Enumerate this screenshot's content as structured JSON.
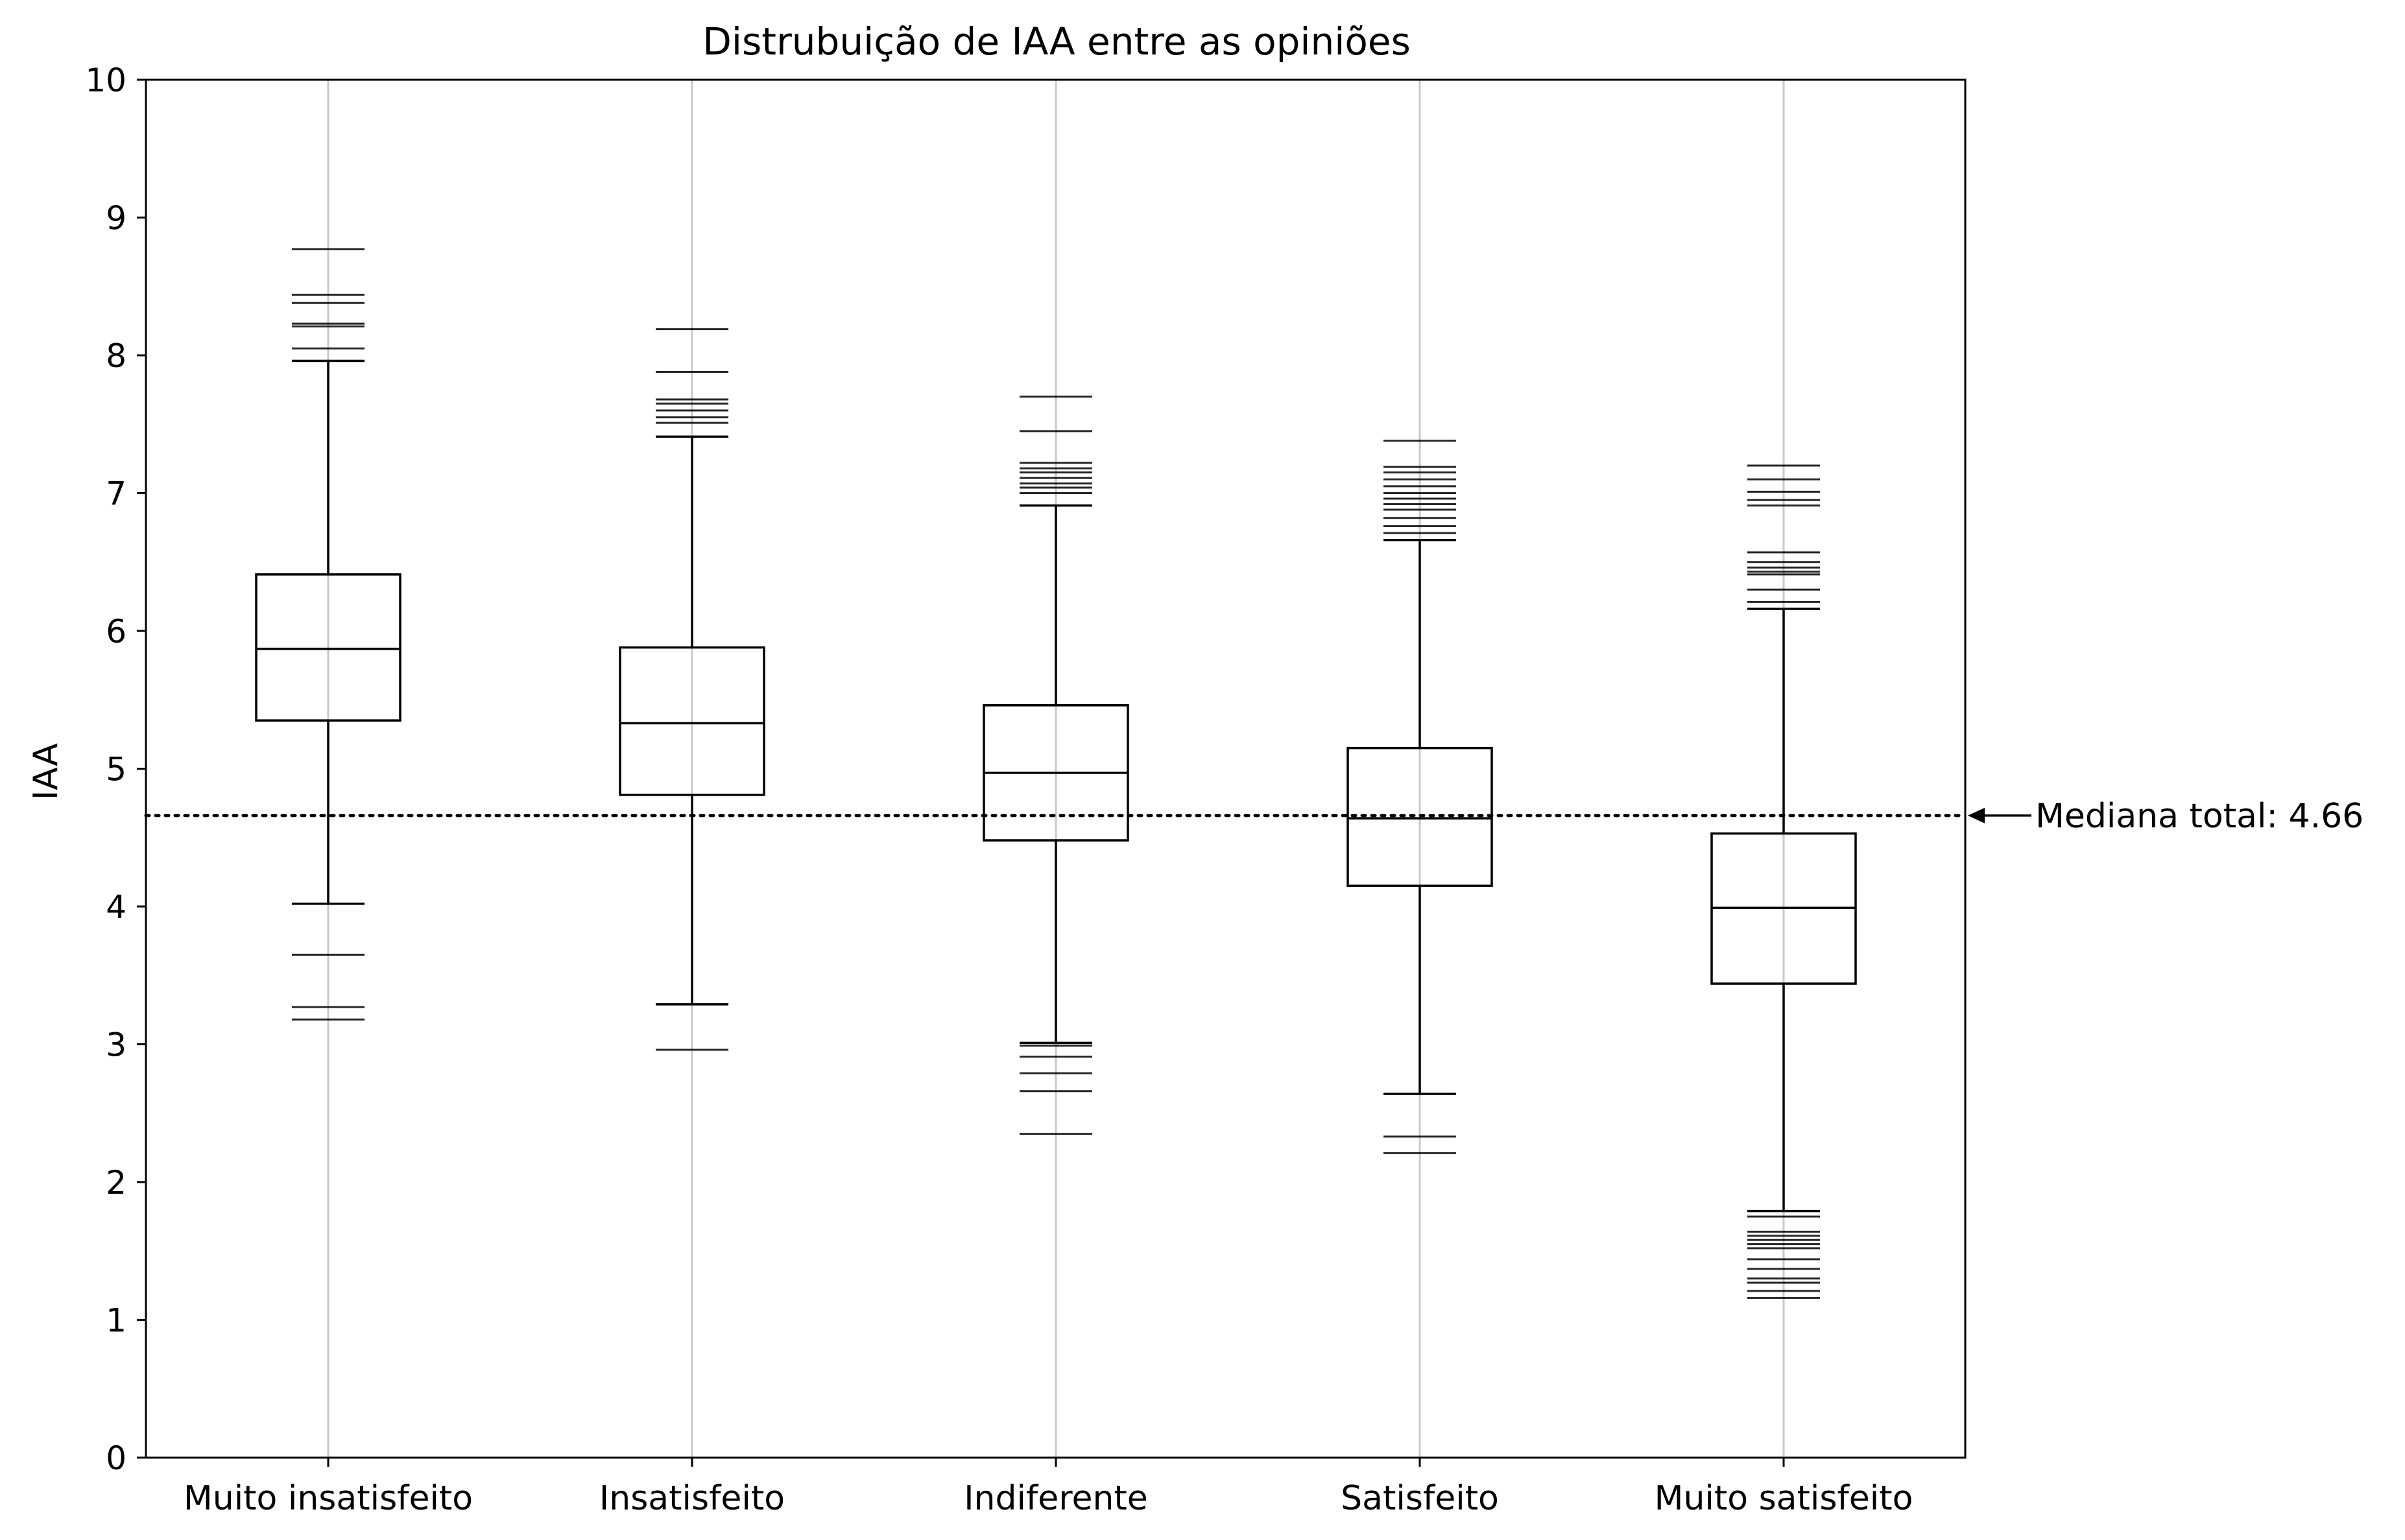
{
  "chart_data": {
    "type": "boxplot",
    "title": "Distrubuição de IAA entre as opiniões",
    "xlabel": "",
    "ylabel": "IAA",
    "ylim": [
      0,
      10
    ],
    "yticks": [
      0,
      1,
      2,
      3,
      4,
      5,
      6,
      7,
      8,
      9,
      10
    ],
    "vertical_grid": true,
    "categories": [
      "Muito insatisfeito",
      "Insatisfeito",
      "Indiferente",
      "Satisfeito",
      "Muito satisfeito"
    ],
    "boxes": [
      {
        "category": "Muito insatisfeito",
        "whisker_low": 4.02,
        "q1": 5.35,
        "median": 5.87,
        "q3": 6.41,
        "whisker_high": 7.96,
        "outliers": [
          3.18,
          3.27,
          3.65,
          8.05,
          8.21,
          8.23,
          8.38,
          8.44,
          8.77
        ]
      },
      {
        "category": "Insatisfeito",
        "whisker_low": 3.29,
        "q1": 4.81,
        "median": 5.33,
        "q3": 5.88,
        "whisker_high": 7.41,
        "outliers": [
          2.96,
          7.51,
          7.55,
          7.6,
          7.65,
          7.68,
          7.88,
          8.19
        ]
      },
      {
        "category": "Indiferente",
        "whisker_low": 3.01,
        "q1": 4.48,
        "median": 4.97,
        "q3": 5.46,
        "whisker_high": 6.91,
        "outliers": [
          2.35,
          2.66,
          2.79,
          2.91,
          2.99,
          7.0,
          7.04,
          7.07,
          7.11,
          7.15,
          7.18,
          7.22,
          7.45,
          7.7
        ]
      },
      {
        "category": "Satisfeito",
        "whisker_low": 2.64,
        "q1": 4.15,
        "median": 4.64,
        "q3": 5.15,
        "whisker_high": 6.66,
        "outliers": [
          2.21,
          2.33,
          6.71,
          6.76,
          6.82,
          6.88,
          6.92,
          6.96,
          7.0,
          7.05,
          7.1,
          7.15,
          7.19,
          7.38
        ]
      },
      {
        "category": "Muito satisfeito",
        "whisker_low": 1.79,
        "q1": 3.44,
        "median": 3.99,
        "q3": 4.53,
        "whisker_high": 6.16,
        "outliers": [
          1.16,
          1.21,
          1.27,
          1.3,
          1.37,
          1.44,
          1.52,
          1.55,
          1.58,
          1.61,
          1.64,
          1.75,
          6.21,
          6.3,
          6.41,
          6.43,
          6.46,
          6.5,
          6.57,
          6.91,
          6.95,
          7.01,
          7.1,
          7.2
        ]
      }
    ],
    "reference_line": {
      "value": 4.66,
      "style": "dotted",
      "annotation": "Mediana total: 4.66"
    },
    "colors": {
      "box": "#000000",
      "outlier": "#000000",
      "grid": "#c8c8c8",
      "background": "#ffffff"
    }
  }
}
